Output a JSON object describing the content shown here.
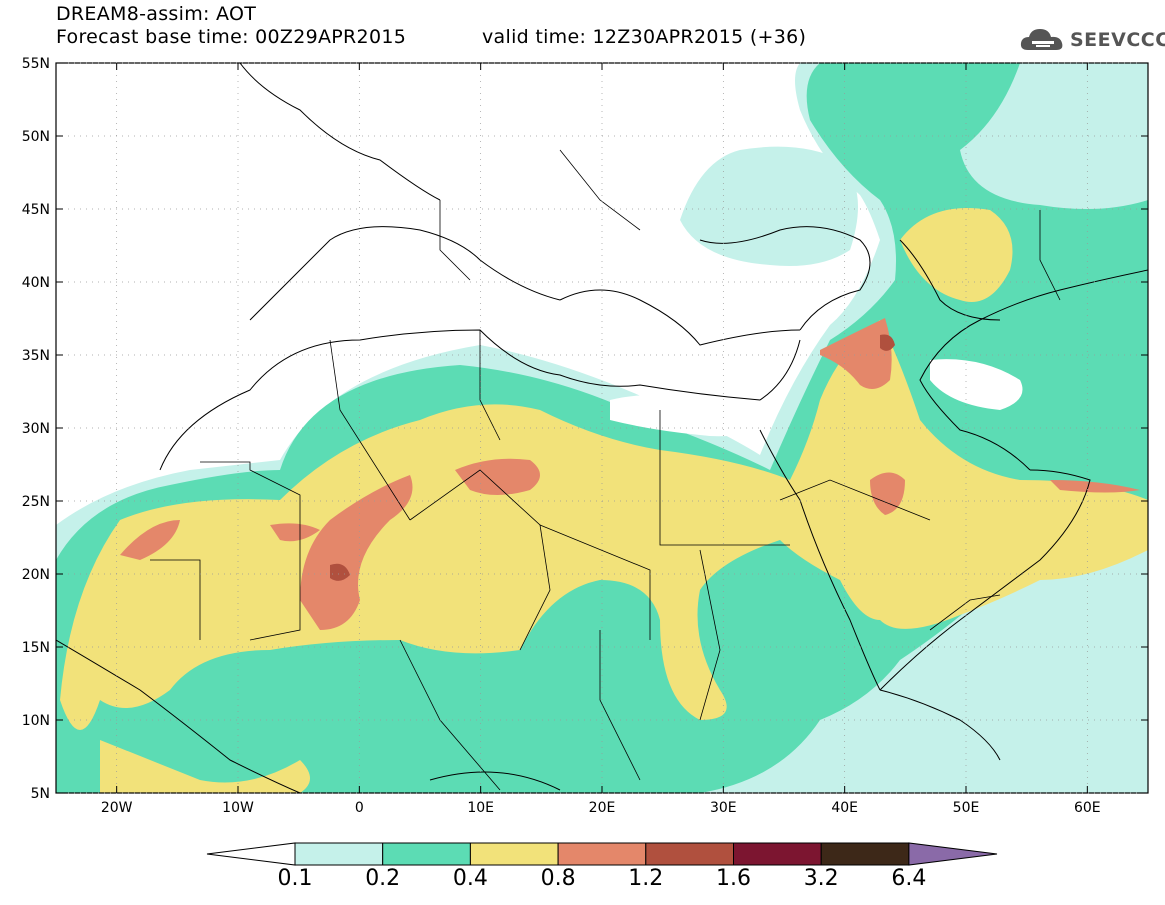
{
  "header": {
    "line1": "DREAM8-assim: AOT",
    "line2": "Forecast base time: 00Z29APR2015",
    "valid": "valid time: 12Z30APR2015 (+36)"
  },
  "logo": {
    "text": "SEEVCCC",
    "icon": "cloud-icon"
  },
  "map": {
    "lat_labels": [
      "55N",
      "50N",
      "45N",
      "40N",
      "35N",
      "30N",
      "25N",
      "20N",
      "15N",
      "10N",
      "5N"
    ],
    "lon_labels": [
      "20W",
      "10W",
      "0",
      "10E",
      "20E",
      "30E",
      "40E",
      "50E",
      "60E"
    ],
    "lat_range": [
      5,
      55
    ],
    "lon_range": [
      -25,
      65
    ],
    "fill_colors": {
      "0.1-0.2": "#c5f1ea",
      "0.2-0.4": "#5cdcb4",
      "0.4-0.8": "#f2e27a",
      "0.8-1.2": "#e4876a",
      "1.2-1.6": "#b0503e",
      "1.6-3.2": "#7c1530",
      "3.2-6.4": "#3d2818",
      ">6.4": "#8a6aa8"
    }
  },
  "colorbar": {
    "labels": [
      "0.1",
      "0.2",
      "0.4",
      "0.8",
      "1.2",
      "1.6",
      "3.2",
      "6.4"
    ],
    "colors": [
      "#c5f1ea",
      "#5cdcb4",
      "#f2e27a",
      "#e4876a",
      "#b0503e",
      "#7c1530",
      "#3d2818"
    ],
    "over_color": "#8a6aa8",
    "under_color": "#ffffff"
  }
}
